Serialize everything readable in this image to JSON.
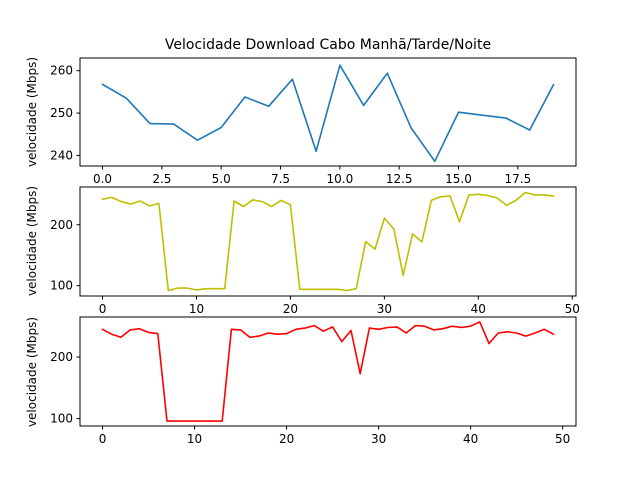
{
  "chart_data": [
    {
      "type": "line",
      "title": "Velocidade Download Cabo Manhã/Tarde/Noite",
      "xlabel": "",
      "ylabel": "velocidade (Mbps)",
      "xlim": [
        -0.95,
        19.95
      ],
      "ylim": [
        237.5,
        263.0
      ],
      "xticks": [
        0.0,
        2.5,
        5.0,
        7.5,
        10.0,
        12.5,
        15.0,
        17.5
      ],
      "xtick_labels": [
        "0.0",
        "2.5",
        "5.0",
        "7.5",
        "10.0",
        "12.5",
        "15.0",
        "17.5"
      ],
      "yticks": [
        240,
        250,
        260
      ],
      "ytick_labels": [
        "240",
        "250",
        "260"
      ],
      "grid": false,
      "series": [
        {
          "color": "#1f77b4",
          "x": [
            0,
            1,
            2,
            3,
            4,
            5,
            6,
            7,
            8,
            9,
            10,
            11,
            12,
            13,
            14,
            15,
            16,
            17,
            18,
            19
          ],
          "values": [
            256.8,
            253.5,
            247.5,
            247.4,
            243.6,
            246.6,
            253.8,
            251.6,
            258.0,
            241.0,
            261.3,
            251.8,
            259.4,
            246.5,
            238.6,
            250.2,
            249.5,
            248.8,
            246.0,
            256.7
          ]
        }
      ]
    },
    {
      "type": "line",
      "title": "",
      "xlabel": "",
      "ylabel": "velocidade (Mbps)",
      "xlim": [
        -2.4,
        50.4
      ],
      "ylim": [
        83,
        262
      ],
      "xticks": [
        0,
        10,
        20,
        30,
        40,
        50
      ],
      "xtick_labels": [
        "0",
        "10",
        "20",
        "30",
        "40",
        "50"
      ],
      "yticks": [
        100,
        200
      ],
      "ytick_labels": [
        "100",
        "200"
      ],
      "grid": false,
      "series": [
        {
          "color": "#bfbf00",
          "x": [
            0,
            1,
            2,
            3,
            4,
            5,
            6,
            7,
            8,
            9,
            10,
            11,
            12,
            13,
            14,
            15,
            16,
            17,
            18,
            19,
            20,
            21,
            22,
            23,
            24,
            25,
            26,
            27,
            28,
            29,
            30,
            31,
            32,
            33,
            34,
            35,
            36,
            37,
            38,
            39,
            40,
            41,
            42,
            43,
            44,
            45,
            46,
            47,
            48
          ],
          "values": [
            242,
            245,
            238,
            234,
            239,
            231,
            235,
            92,
            96,
            96,
            93,
            95,
            95,
            95,
            239,
            230,
            241,
            238,
            230,
            240,
            233,
            94,
            94,
            94,
            94,
            94,
            92,
            95,
            172,
            160,
            211,
            193,
            117,
            185,
            172,
            240,
            246,
            247,
            205,
            249,
            250,
            248,
            244,
            232,
            240,
            253,
            249,
            249,
            247
          ]
        }
      ]
    },
    {
      "type": "line",
      "title": "",
      "xlabel": "",
      "ylabel": "velocidade (Mbps)",
      "xlim": [
        -2.45,
        51.45
      ],
      "ylim": [
        88,
        265
      ],
      "xticks": [
        0,
        10,
        20,
        30,
        40,
        50
      ],
      "xtick_labels": [
        "0",
        "10",
        "20",
        "30",
        "40",
        "50"
      ],
      "yticks": [
        100,
        200
      ],
      "ytick_labels": [
        "100",
        "200"
      ],
      "grid": false,
      "series": [
        {
          "color": "#ff0000",
          "x": [
            0,
            1,
            2,
            3,
            4,
            5,
            6,
            7,
            8,
            9,
            10,
            11,
            12,
            13,
            14,
            15,
            16,
            17,
            18,
            19,
            20,
            21,
            22,
            23,
            24,
            25,
            26,
            27,
            28,
            29,
            30,
            31,
            32,
            33,
            34,
            35,
            36,
            37,
            38,
            39,
            40,
            41,
            42,
            43,
            44,
            45,
            46,
            47,
            48,
            49
          ],
          "values": [
            245,
            237,
            232,
            244,
            246,
            240,
            238,
            96,
            96,
            96,
            96,
            96,
            96,
            96,
            245,
            244,
            232,
            234,
            239,
            237,
            238,
            245,
            247,
            251,
            242,
            249,
            225,
            243,
            173,
            247,
            245,
            248,
            249,
            239,
            251,
            250,
            244,
            246,
            250,
            248,
            250,
            257,
            222,
            239,
            241,
            239,
            234,
            239,
            245,
            237
          ]
        }
      ]
    }
  ]
}
